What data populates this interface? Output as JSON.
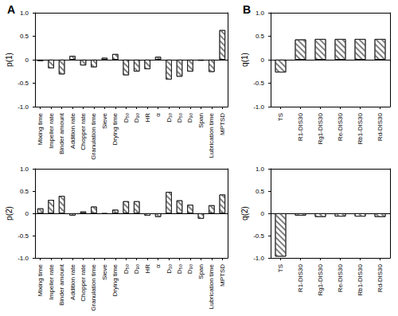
{
  "chart_data": [
    {
      "type": "bar",
      "title": "A",
      "ylabel": "p(1)",
      "categories": [
        "Mixing time",
        "Impeller rate",
        "Binder amount",
        "Addition rate",
        "Chopper rate",
        "Granulation time",
        "Sieve",
        "Drying time",
        "D₅₀",
        "D₉₀",
        "HR",
        "α",
        "D₁₀",
        "D₅₀",
        "D₉₀",
        "Span",
        "Lubrication time",
        "MPTSD"
      ],
      "values": [
        -0.03,
        -0.18,
        -0.31,
        0.08,
        -0.12,
        -0.16,
        0.04,
        0.12,
        -0.33,
        -0.25,
        -0.2,
        0.06,
        -0.42,
        -0.36,
        -0.25,
        -0.02,
        -0.26,
        0.63
      ],
      "color": "#808080",
      "ylim": [
        -1,
        1
      ],
      "yticks": [
        {
          "value": -1,
          "label": "-1.0"
        },
        -0.5,
        0,
        0.5,
        {
          "value": 1,
          "label": "1.0"
        }
      ]
    },
    {
      "type": "bar",
      "ylabel": "p(2)",
      "categories": [
        "Mixing time",
        "Impeller rate",
        "Binder amount",
        "Addition rate",
        "Chopper rate",
        "Granulation time",
        "Sieve",
        "Drying time",
        "D₅₀",
        "D₉₀",
        "HR",
        "α",
        "D₁₀",
        "D₅₀",
        "D₉₀",
        "Span",
        "Lubrication time",
        "MPTSD"
      ],
      "values": [
        0.11,
        0.3,
        0.39,
        -0.05,
        0.04,
        0.15,
        -0.01,
        0.08,
        0.27,
        0.27,
        -0.05,
        -0.08,
        0.48,
        0.29,
        0.19,
        -0.12,
        0.18,
        0.42
      ],
      "color": "#808080",
      "ylim": [
        -1,
        1
      ],
      "yticks": [
        {
          "value": -1,
          "label": "-1.0"
        },
        -0.5,
        0,
        0.5,
        {
          "value": 1,
          "label": "1.0"
        }
      ]
    },
    {
      "type": "bar",
      "title": "B",
      "ylabel": "q(1)",
      "categories": [
        "TS",
        "R1-DIS30",
        "Rg1-DIS30",
        "Re-DIS30",
        "Rb1-DIS30",
        "Rd-DIS30"
      ],
      "values": [
        -0.27,
        0.43,
        0.44,
        0.44,
        0.44,
        0.44
      ],
      "color": "#808080",
      "ylim": [
        -1,
        1
      ],
      "yticks": [
        {
          "value": -1,
          "label": "-1.0"
        },
        -0.5,
        0,
        0.5,
        {
          "value": 1,
          "label": "1.0"
        }
      ]
    },
    {
      "type": "bar",
      "ylabel": "q(2)",
      "categories": [
        "TS",
        "R1-DIS30",
        "Rg1-DIS30",
        "Re-DIS30",
        "Rb1-DIS30",
        "Rd-DIS30"
      ],
      "values": [
        -0.97,
        -0.05,
        -0.08,
        -0.07,
        -0.07,
        -0.08
      ],
      "color": "#808080",
      "ylim": [
        -1,
        1
      ],
      "yticks": [
        {
          "value": -1,
          "label": "-1.0"
        },
        -0.5,
        0,
        0.5,
        {
          "value": 1,
          "label": "1.0"
        }
      ]
    }
  ]
}
